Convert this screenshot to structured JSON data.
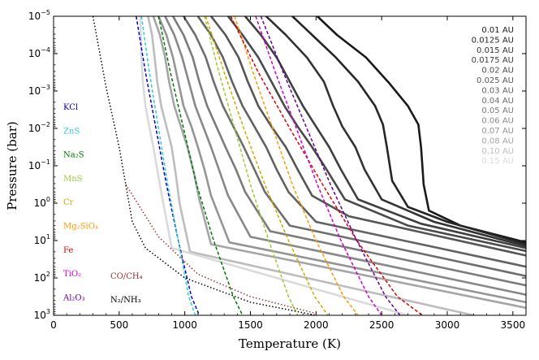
{
  "chart_data": {
    "type": "line",
    "xlabel": "Temperature (K)",
    "ylabel": "Pressure (bar)",
    "xlim": [
      0,
      3600
    ],
    "ylim_log10": [
      -5,
      3
    ],
    "y_inverted": true,
    "y_scale": "log",
    "x_ticks": [
      0,
      500,
      1000,
      1500,
      2000,
      2500,
      3000,
      3500
    ],
    "x_tick_labels": [
      "0",
      "500",
      "1000",
      "1500",
      "2000",
      "2500",
      "3000",
      "3500"
    ],
    "y_ticks": [
      {
        "exp": -5,
        "base": "10",
        "sup": "−5"
      },
      {
        "exp": -4,
        "base": "10",
        "sup": "−4"
      },
      {
        "exp": -3,
        "base": "10",
        "sup": "−3"
      },
      {
        "exp": -2,
        "base": "10",
        "sup": "−2"
      },
      {
        "exp": -1,
        "base": "10",
        "sup": "−1"
      },
      {
        "exp": 0,
        "base": "10",
        "sup": "0"
      },
      {
        "exp": 1,
        "base": "10",
        "sup": "1"
      },
      {
        "exp": 2,
        "base": "10",
        "sup": "2"
      },
      {
        "exp": 3,
        "base": "10",
        "sup": "3"
      }
    ],
    "legend_position": "top-right",
    "series": [
      {
        "name": "0.01 AU",
        "color": "#1a1a1a",
        "points": [
          [
            2010,
            -5
          ],
          [
            2160,
            -4.5
          ],
          [
            2380,
            -3.9
          ],
          [
            2560,
            -3.2
          ],
          [
            2700,
            -2.6
          ],
          [
            2780,
            -2.1
          ],
          [
            2800,
            -1.5
          ],
          [
            2820,
            -0.5
          ],
          [
            2860,
            0.2
          ],
          [
            3100,
            0.6
          ],
          [
            3600,
            1.05
          ]
        ]
      },
      {
        "name": "0.0125 AU",
        "color": "#262626",
        "points": [
          [
            1820,
            -5
          ],
          [
            1970,
            -4.5
          ],
          [
            2150,
            -3.9
          ],
          [
            2320,
            -3.25
          ],
          [
            2450,
            -2.6
          ],
          [
            2510,
            -2.1
          ],
          [
            2540,
            -1.5
          ],
          [
            2580,
            -0.6
          ],
          [
            2700,
            0.1
          ],
          [
            3000,
            0.5
          ],
          [
            3600,
            1.1
          ]
        ]
      },
      {
        "name": "0.015 AU",
        "color": "#333333",
        "points": [
          [
            1620,
            -5
          ],
          [
            1770,
            -4.5
          ],
          [
            1930,
            -3.9
          ],
          [
            2060,
            -3.25
          ],
          [
            2130,
            -2.6
          ],
          [
            2200,
            -2.05
          ],
          [
            2300,
            -1.5
          ],
          [
            2370,
            -0.9
          ],
          [
            2500,
            -0.1
          ],
          [
            2900,
            0.5
          ],
          [
            3600,
            1.15
          ]
        ]
      },
      {
        "name": "0.0175 AU",
        "color": "#3f3f3f",
        "points": [
          [
            1460,
            -5
          ],
          [
            1580,
            -4.5
          ],
          [
            1700,
            -3.9
          ],
          [
            1800,
            -3.25
          ],
          [
            1900,
            -2.6
          ],
          [
            2000,
            -2.05
          ],
          [
            2100,
            -1.5
          ],
          [
            2190,
            -0.9
          ],
          [
            2320,
            -0.1
          ],
          [
            2800,
            0.55
          ],
          [
            3600,
            1.2
          ]
        ]
      },
      {
        "name": "0.02 AU",
        "color": "#4a4a4a",
        "points": [
          [
            1330,
            -5
          ],
          [
            1440,
            -4.5
          ],
          [
            1560,
            -3.9
          ],
          [
            1660,
            -3.25
          ],
          [
            1760,
            -2.6
          ],
          [
            1860,
            -2.05
          ],
          [
            1970,
            -1.5
          ],
          [
            2080,
            -0.9
          ],
          [
            2220,
            -0.1
          ],
          [
            2700,
            0.6
          ],
          [
            3600,
            1.28
          ]
        ]
      },
      {
        "name": "0.025 AU",
        "color": "#565656",
        "points": [
          [
            1200,
            -5
          ],
          [
            1310,
            -4.5
          ],
          [
            1410,
            -3.9
          ],
          [
            1480,
            -3.25
          ],
          [
            1560,
            -2.6
          ],
          [
            1660,
            -2.05
          ],
          [
            1770,
            -1.5
          ],
          [
            1860,
            -0.9
          ],
          [
            1970,
            -0.2
          ],
          [
            2250,
            0.35
          ],
          [
            3600,
            1.4
          ]
        ]
      },
      {
        "name": "0.03 AU",
        "color": "#626262",
        "points": [
          [
            1100,
            -5
          ],
          [
            1200,
            -4.5
          ],
          [
            1290,
            -3.9
          ],
          [
            1360,
            -3.25
          ],
          [
            1440,
            -2.6
          ],
          [
            1530,
            -2.05
          ],
          [
            1620,
            -1.5
          ],
          [
            1700,
            -0.9
          ],
          [
            1790,
            -0.3
          ],
          [
            2000,
            0.5
          ],
          [
            3600,
            1.7
          ]
        ]
      },
      {
        "name": "0.04 AU",
        "color": "#6e6e6e",
        "points": [
          [
            990,
            -5
          ],
          [
            1080,
            -4.5
          ],
          [
            1160,
            -3.9
          ],
          [
            1220,
            -3.25
          ],
          [
            1290,
            -2.6
          ],
          [
            1370,
            -2.05
          ],
          [
            1450,
            -1.5
          ],
          [
            1530,
            -0.9
          ],
          [
            1610,
            -0.3
          ],
          [
            1800,
            0.6
          ],
          [
            3600,
            1.95
          ]
        ]
      },
      {
        "name": "0.05 AU",
        "color": "#7b7b7b",
        "points": [
          [
            910,
            -5
          ],
          [
            990,
            -4.5
          ],
          [
            1060,
            -3.9
          ],
          [
            1110,
            -3.25
          ],
          [
            1170,
            -2.6
          ],
          [
            1240,
            -2.05
          ],
          [
            1310,
            -1.5
          ],
          [
            1390,
            -0.9
          ],
          [
            1460,
            -0.3
          ],
          [
            1650,
            0.75
          ],
          [
            3600,
            2.2
          ]
        ]
      },
      {
        "name": "0.06 AU",
        "color": "#888888",
        "points": [
          [
            850,
            -5
          ],
          [
            920,
            -4.5
          ],
          [
            980,
            -3.9
          ],
          [
            1030,
            -3.25
          ],
          [
            1080,
            -2.6
          ],
          [
            1140,
            -2.05
          ],
          [
            1200,
            -1.5
          ],
          [
            1260,
            -0.9
          ],
          [
            1330,
            -0.2
          ],
          [
            1500,
            0.9
          ],
          [
            3600,
            2.45
          ]
        ]
      },
      {
        "name": "0.07 AU",
        "color": "#959595",
        "points": [
          [
            800,
            -5
          ],
          [
            860,
            -4.5
          ],
          [
            910,
            -3.9
          ],
          [
            950,
            -3.25
          ],
          [
            990,
            -2.6
          ],
          [
            1050,
            -2.05
          ],
          [
            1100,
            -1.5
          ],
          [
            1150,
            -0.9
          ],
          [
            1200,
            -0.2
          ],
          [
            1340,
            1.05
          ],
          [
            3600,
            2.65
          ]
        ]
      },
      {
        "name": "0.08 AU",
        "color": "#a5a5a5",
        "points": [
          [
            760,
            -5
          ],
          [
            810,
            -4.5
          ],
          [
            850,
            -3.9
          ],
          [
            880,
            -3.25
          ],
          [
            920,
            -2.6
          ],
          [
            970,
            -2.05
          ],
          [
            1020,
            -1.5
          ],
          [
            1070,
            -0.8
          ],
          [
            1110,
            -0.1
          ],
          [
            1200,
            1.1
          ],
          [
            3600,
            2.8
          ]
        ]
      },
      {
        "name": "0.10 AU",
        "color": "#bdbdbd",
        "points": [
          [
            720,
            -5
          ],
          [
            750,
            -4.5
          ],
          [
            770,
            -3.9
          ],
          [
            790,
            -3.25
          ],
          [
            820,
            -2.6
          ],
          [
            860,
            -2.05
          ],
          [
            900,
            -1.5
          ],
          [
            930,
            -0.8
          ],
          [
            960,
            0
          ],
          [
            1040,
            1.3
          ],
          [
            3200,
            3
          ]
        ]
      },
      {
        "name": "0.15 AU",
        "color": "#dadada",
        "points": [
          [
            660,
            -5
          ],
          [
            665,
            -4.5
          ],
          [
            670,
            -3.9
          ],
          [
            680,
            -3.25
          ],
          [
            700,
            -2.6
          ],
          [
            730,
            -2.05
          ],
          [
            760,
            -1.5
          ],
          [
            790,
            -0.9
          ],
          [
            820,
            -0.3
          ],
          [
            900,
            1.2
          ],
          [
            2700,
            3
          ]
        ]
      }
    ],
    "condensation_curves": [
      {
        "name": "KCl",
        "color": "#0000cc",
        "style": "dashed",
        "points": [
          [
            630,
            -5
          ],
          [
            700,
            -3.5
          ],
          [
            780,
            -2
          ],
          [
            860,
            -0.5
          ],
          [
            950,
            1
          ],
          [
            1050,
            2.5
          ],
          [
            1110,
            3
          ]
        ]
      },
      {
        "name": "ZnS",
        "color": "#33cccc",
        "style": "dashed",
        "points": [
          [
            670,
            -5
          ],
          [
            730,
            -3.5
          ],
          [
            800,
            -2
          ],
          [
            870,
            -0.5
          ],
          [
            950,
            1
          ],
          [
            1030,
            2.5
          ],
          [
            1080,
            3
          ]
        ]
      },
      {
        "name": "Na₂S",
        "color": "#007700",
        "style": "dashed",
        "points": [
          [
            800,
            -5
          ],
          [
            890,
            -3.5
          ],
          [
            990,
            -2
          ],
          [
            1090,
            -0.5
          ],
          [
            1220,
            1
          ],
          [
            1370,
            2.5
          ],
          [
            1440,
            3
          ]
        ]
      },
      {
        "name": "MnS",
        "color": "#99cc33",
        "style": "dashed",
        "points": [
          [
            1150,
            -5
          ],
          [
            1260,
            -3.5
          ],
          [
            1380,
            -2
          ],
          [
            1500,
            -0.5
          ],
          [
            1640,
            1
          ],
          [
            1790,
            2.5
          ],
          [
            1860,
            3
          ]
        ]
      },
      {
        "name": "Cr",
        "color": "#ccaa00",
        "style": "dashed",
        "points": [
          [
            1160,
            -5
          ],
          [
            1300,
            -3.5
          ],
          [
            1450,
            -2
          ],
          [
            1610,
            -0.5
          ],
          [
            1790,
            1
          ],
          [
            1990,
            2.5
          ],
          [
            2090,
            3
          ]
        ]
      },
      {
        "name": "Mg₂SiO₄",
        "color": "#ff9900",
        "style": "dashed",
        "points": [
          [
            1380,
            -5
          ],
          [
            1520,
            -3.5
          ],
          [
            1670,
            -2
          ],
          [
            1820,
            -0.5
          ],
          [
            2000,
            1
          ],
          [
            2210,
            2.5
          ],
          [
            2320,
            3
          ]
        ]
      },
      {
        "name": "Fe",
        "color": "#dd0000",
        "style": "dashed",
        "points": [
          [
            1350,
            -5
          ],
          [
            1560,
            -3.5
          ],
          [
            1800,
            -2
          ],
          [
            2050,
            -0.5
          ],
          [
            2310,
            1
          ],
          [
            2620,
            2.5
          ],
          [
            2810,
            3
          ]
        ]
      },
      {
        "name": "TiO₂",
        "color": "#cc00cc",
        "style": "dashed",
        "points": [
          [
            1540,
            -5
          ],
          [
            1690,
            -3.5
          ],
          [
            1850,
            -2
          ],
          [
            2010,
            -0.5
          ],
          [
            2190,
            1
          ],
          [
            2400,
            2.5
          ],
          [
            2500,
            3
          ]
        ]
      },
      {
        "name": "Al₂O₃",
        "color": "#660099",
        "style": "dashed",
        "points": [
          [
            1580,
            -5
          ],
          [
            1750,
            -3.5
          ],
          [
            1930,
            -2
          ],
          [
            2110,
            -0.5
          ],
          [
            2310,
            1
          ],
          [
            2530,
            2.5
          ],
          [
            2640,
            3
          ]
        ]
      },
      {
        "name": "CO/CH₄",
        "color": "#993333",
        "style": "dotted",
        "points": [
          [
            550,
            -0.5
          ],
          [
            800,
            0.9
          ],
          [
            1100,
            1.9
          ],
          [
            1500,
            2.5
          ],
          [
            2000,
            2.95
          ]
        ]
      },
      {
        "name": "N₂/NH₃",
        "color": "#000000",
        "style": "dotted",
        "points": [
          [
            300,
            -5
          ],
          [
            400,
            -3.1
          ],
          [
            500,
            -1.5
          ],
          [
            600,
            0.5
          ],
          [
            700,
            1.2
          ],
          [
            1000,
            2
          ],
          [
            1500,
            2.65
          ],
          [
            2000,
            3
          ]
        ]
      }
    ]
  }
}
